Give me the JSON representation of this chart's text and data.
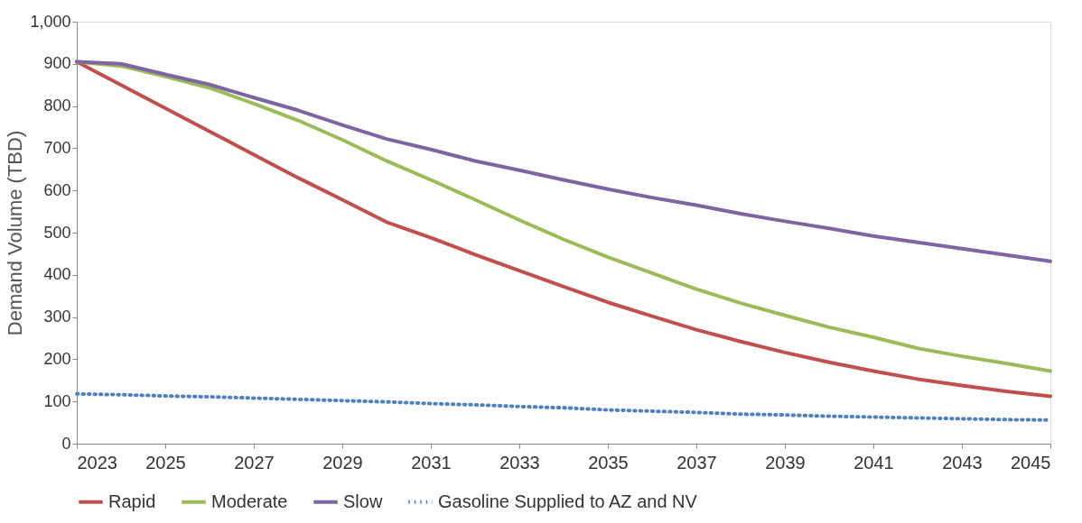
{
  "chart_data": {
    "type": "line",
    "ylabel": "Demand Volume (TBD)",
    "x": [
      2023,
      2024,
      2025,
      2026,
      2027,
      2028,
      2029,
      2030,
      2031,
      2032,
      2033,
      2034,
      2035,
      2036,
      2037,
      2038,
      2039,
      2040,
      2041,
      2042,
      2043,
      2044,
      2045
    ],
    "series": [
      {
        "name": "Rapid",
        "color": "#c0504d",
        "line_style": "solid",
        "values": [
          905,
          850,
          795,
          740,
          685,
          630,
          578,
          525,
          488,
          448,
          410,
          372,
          335,
          302,
          270,
          242,
          216,
          193,
          172,
          153,
          138,
          124,
          112
        ]
      },
      {
        "name": "Moderate",
        "color": "#9bbb59",
        "line_style": "solid",
        "values": [
          905,
          895,
          870,
          843,
          806,
          766,
          720,
          670,
          625,
          578,
          530,
          484,
          442,
          404,
          366,
          333,
          304,
          276,
          252,
          226,
          207,
          190,
          172
        ]
      },
      {
        "name": "Slow",
        "color": "#8064a2",
        "line_style": "solid",
        "values": [
          905,
          900,
          875,
          851,
          820,
          790,
          755,
          722,
          697,
          670,
          648,
          625,
          603,
          583,
          565,
          545,
          527,
          510,
          492,
          477,
          462,
          447,
          432
        ]
      },
      {
        "name": "Gasoline Supplied to AZ and NV",
        "color": "#4f81bd",
        "line_style": "dotted",
        "values": [
          118,
          116,
          113,
          111,
          108,
          105,
          102,
          99,
          95,
          92,
          88,
          85,
          80,
          77,
          74,
          70,
          68,
          65,
          63,
          61,
          59,
          57,
          56
        ]
      }
    ],
    "xlim": [
      2023,
      2045
    ],
    "xticks": [
      2023,
      2025,
      2027,
      2029,
      2031,
      2033,
      2035,
      2037,
      2039,
      2041,
      2043,
      2045
    ],
    "ylim": [
      0,
      1000
    ],
    "yticks": [
      0,
      100,
      200,
      300,
      400,
      500,
      600,
      700,
      800,
      900,
      {
        "value": 1000,
        "label": "1,000"
      }
    ],
    "grid": false,
    "legend": "bottom",
    "marker": "none"
  }
}
